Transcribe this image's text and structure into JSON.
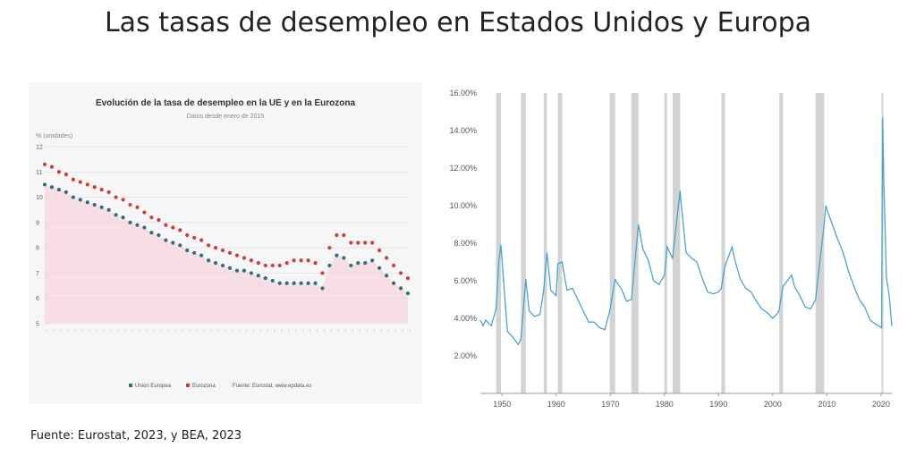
{
  "page": {
    "title": "Las tasas de desempleo en Estados Unidos y Europa",
    "source": "Fuente: Eurostat, 2023, y  BEA, 2023"
  },
  "chart_data": [
    {
      "type": "scatter",
      "title": "Evolución de la tasa de desempleo en la UE y en la Eurozona",
      "subtitle": "Datos desde enero de 2015",
      "ylabel": "% (unidades)",
      "ylim": [
        5,
        12
      ],
      "yticks": [
        5,
        6,
        7,
        8,
        9,
        10,
        11,
        12
      ],
      "grid": true,
      "legend": "bottom",
      "legend_note": "Fuente: Eurostat, www.epdata.es",
      "x": [
        0,
        2,
        4,
        6,
        8,
        10,
        12,
        14,
        16,
        18,
        20,
        22,
        24,
        26,
        28,
        30,
        32,
        34,
        36,
        38,
        40,
        42,
        44,
        46,
        48,
        50,
        52,
        54,
        56,
        58,
        60,
        62,
        64,
        66,
        68,
        70,
        72,
        74,
        76,
        78,
        80,
        82,
        84,
        86,
        88,
        90,
        92,
        94,
        96,
        98,
        100,
        102
      ],
      "series": [
        {
          "name": "Unión Europea",
          "color": "#2e6f7e",
          "values": [
            10.5,
            10.4,
            10.3,
            10.2,
            10.0,
            9.9,
            9.8,
            9.7,
            9.6,
            9.5,
            9.3,
            9.2,
            9.0,
            8.9,
            8.8,
            8.6,
            8.5,
            8.3,
            8.2,
            8.1,
            7.9,
            7.8,
            7.7,
            7.5,
            7.4,
            7.3,
            7.2,
            7.1,
            7.1,
            7.0,
            6.9,
            6.8,
            6.7,
            6.6,
            6.6,
            6.6,
            6.6,
            6.6,
            6.6,
            6.4,
            7.3,
            7.7,
            7.6,
            7.3,
            7.4,
            7.4,
            7.5,
            7.2,
            6.9,
            6.6,
            6.4,
            6.2
          ]
        },
        {
          "name": "Eurozona",
          "color": "#d13a3a",
          "values": [
            11.3,
            11.2,
            11.0,
            10.9,
            10.7,
            10.6,
            10.5,
            10.4,
            10.3,
            10.2,
            10.0,
            9.9,
            9.7,
            9.6,
            9.4,
            9.2,
            9.1,
            8.9,
            8.8,
            8.7,
            8.5,
            8.4,
            8.3,
            8.1,
            8.0,
            7.9,
            7.8,
            7.7,
            7.6,
            7.5,
            7.4,
            7.3,
            7.3,
            7.3,
            7.4,
            7.5,
            7.5,
            7.5,
            7.4,
            7.0,
            8.0,
            8.5,
            8.5,
            8.2,
            8.2,
            8.2,
            8.2,
            7.9,
            7.6,
            7.3,
            7.0,
            6.8
          ]
        }
      ]
    },
    {
      "type": "line",
      "xlim": [
        1946,
        2022
      ],
      "ylim": [
        0,
        16
      ],
      "xticks": [
        1950,
        1960,
        1970,
        1980,
        1990,
        2000,
        2010,
        2020
      ],
      "yticks": [
        2,
        4,
        6,
        8,
        10,
        12,
        14,
        16
      ],
      "ytick_labels": [
        "2.00%",
        "4.00%",
        "6.00%",
        "8.00%",
        "10.00%",
        "12.00%",
        "14.00%",
        "16.00%"
      ],
      "series_color": "#4aa3cf",
      "recession_color": "#d3d3d3",
      "recessions": [
        [
          1948.9,
          1949.8
        ],
        [
          1953.5,
          1954.4
        ],
        [
          1957.7,
          1958.3
        ],
        [
          1960.3,
          1961.1
        ],
        [
          1969.9,
          1970.9
        ],
        [
          1973.9,
          1975.2
        ],
        [
          1980.0,
          1980.5
        ],
        [
          1981.5,
          1982.9
        ],
        [
          1990.5,
          1991.2
        ],
        [
          2001.2,
          2001.9
        ],
        [
          2007.9,
          2009.5
        ],
        [
          2020.1,
          2020.3
        ]
      ],
      "x": [
        1946,
        1946.5,
        1947,
        1948,
        1948.9,
        1949.4,
        1949.8,
        1950.5,
        1951,
        1952,
        1953,
        1953.5,
        1954.4,
        1955,
        1956,
        1957,
        1957.7,
        1958.3,
        1959,
        1960,
        1960.3,
        1961.1,
        1962,
        1963,
        1964,
        1965,
        1966,
        1967,
        1968,
        1969,
        1969.9,
        1970.9,
        1971,
        1972,
        1973,
        1973.9,
        1975.2,
        1976,
        1977,
        1978,
        1979,
        1980,
        1980.5,
        1981,
        1981.5,
        1982.9,
        1983,
        1984,
        1985,
        1986,
        1987,
        1988,
        1989,
        1990,
        1990.5,
        1991.2,
        1992.5,
        1993,
        1994,
        1995,
        1996,
        1997,
        1998,
        1999,
        2000,
        2001,
        2001.2,
        2001.9,
        2003.5,
        2004,
        2005,
        2006,
        2007,
        2007.9,
        2009.5,
        2009.8,
        2010,
        2011,
        2012,
        2013,
        2014,
        2015,
        2016,
        2017,
        2018,
        2019,
        2020.1,
        2020.3,
        2020.5,
        2021,
        2021.5,
        2022
      ],
      "values": [
        3.9,
        3.6,
        3.9,
        3.6,
        4.5,
        7.0,
        7.9,
        5.2,
        3.3,
        3.0,
        2.6,
        2.9,
        6.1,
        4.4,
        4.1,
        4.2,
        5.5,
        7.5,
        5.5,
        5.2,
        6.9,
        7.0,
        5.5,
        5.6,
        5.0,
        4.4,
        3.8,
        3.8,
        3.5,
        3.4,
        4.4,
        6.1,
        6.0,
        5.6,
        4.9,
        5.0,
        9.0,
        7.7,
        7.1,
        6.0,
        5.8,
        6.3,
        7.8,
        7.5,
        7.2,
        10.8,
        10.4,
        7.5,
        7.2,
        7.0,
        6.1,
        5.4,
        5.3,
        5.4,
        5.6,
        6.8,
        7.8,
        7.1,
        6.1,
        5.6,
        5.4,
        4.9,
        4.5,
        4.3,
        4.0,
        4.3,
        4.5,
        5.7,
        6.3,
        5.7,
        5.2,
        4.6,
        4.5,
        5.0,
        9.0,
        10.0,
        9.8,
        9.0,
        8.2,
        7.5,
        6.5,
        5.7,
        5.0,
        4.6,
        3.9,
        3.7,
        3.5,
        14.7,
        11.5,
        6.2,
        5.2,
        3.6
      ]
    }
  ]
}
